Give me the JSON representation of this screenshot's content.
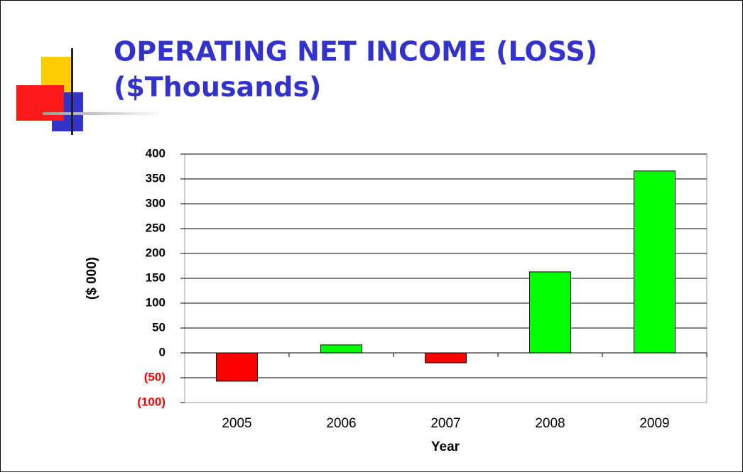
{
  "chart_data": {
    "type": "bar",
    "title_lines": [
      "OPERATING NET INCOME (LOSS)",
      "($Thousands)"
    ],
    "title_color": "#3333cc",
    "categories": [
      "2005",
      "2006",
      "2007",
      "2008",
      "2009"
    ],
    "values": [
      -57,
      16,
      -20,
      163,
      366
    ],
    "colors": [
      "#ff0000",
      "#00ff00",
      "#ff0000",
      "#00ff00",
      "#00ff00"
    ],
    "ylim": [
      -100,
      400
    ],
    "yticks": [
      {
        "value": -100,
        "label": "(100)"
      },
      {
        "value": -50,
        "label": "(50)"
      },
      0,
      50,
      100,
      150,
      200,
      250,
      300,
      350,
      400
    ],
    "negative_label_color": "#ff0000",
    "ylabel": "($ 000)",
    "xlabel": "Year",
    "grid": true
  }
}
